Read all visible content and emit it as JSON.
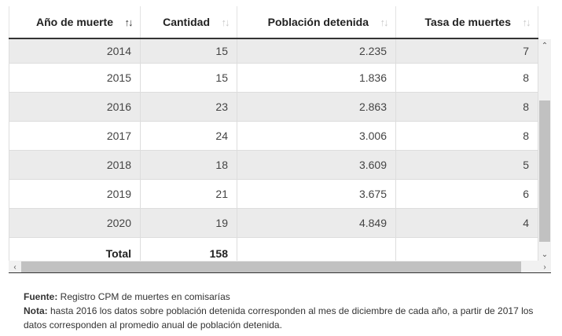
{
  "table": {
    "columns": [
      {
        "label": "Año de muerte",
        "sort_icon": "sort-descending-icon",
        "sort_glyph": "↑↓",
        "active": true
      },
      {
        "label": "Cantidad",
        "sort_icon": "sort-icon",
        "sort_glyph": "↑↓",
        "active": false
      },
      {
        "label": "Población detenida",
        "sort_icon": "sort-icon",
        "sort_glyph": "↑↓",
        "active": false
      },
      {
        "label": "Tasa de muertes",
        "sort_icon": "sort-icon",
        "sort_glyph": "↑↓",
        "active": false
      }
    ],
    "rows": [
      {
        "year": "2014",
        "cantidad": "15",
        "poblacion": "2.235",
        "tasa": "7"
      },
      {
        "year": "2015",
        "cantidad": "15",
        "poblacion": "1.836",
        "tasa": "8"
      },
      {
        "year": "2016",
        "cantidad": "23",
        "poblacion": "2.863",
        "tasa": "8"
      },
      {
        "year": "2017",
        "cantidad": "24",
        "poblacion": "3.006",
        "tasa": "8"
      },
      {
        "year": "2018",
        "cantidad": "18",
        "poblacion": "3.609",
        "tasa": "5"
      },
      {
        "year": "2019",
        "cantidad": "21",
        "poblacion": "3.675",
        "tasa": "6"
      },
      {
        "year": "2020",
        "cantidad": "19",
        "poblacion": "4.849",
        "tasa": "4"
      }
    ],
    "total": {
      "label": "Total",
      "cantidad": "158",
      "poblacion": "",
      "tasa": ""
    }
  },
  "scrollbars": {
    "up_glyph": "⌃",
    "down_glyph": "⌄",
    "left_glyph": "‹",
    "right_glyph": "›"
  },
  "notes": {
    "fuente_label": "Fuente:",
    "fuente_text": " Registro CPM de muertes en comisarías",
    "nota_label": "Nota:",
    "nota_text": " hasta 2016 los datos sobre población detenida corresponden al mes de diciembre de cada año, a partir de 2017 los datos corresponden al promedio anual de población detenida."
  }
}
